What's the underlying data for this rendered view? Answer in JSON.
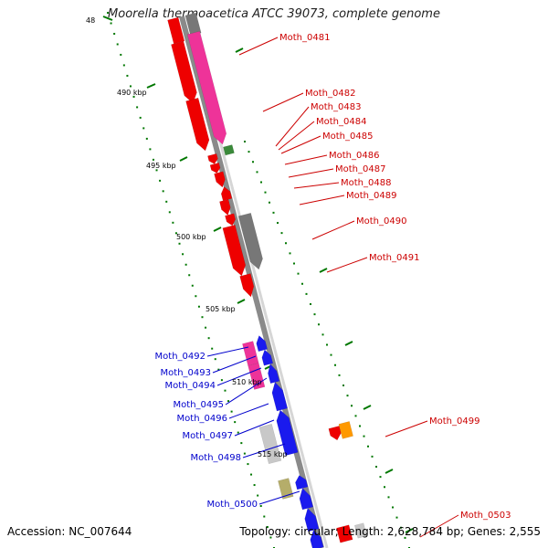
{
  "title": "Moorella thermoacetica ATCC 39073, complete genome",
  "footer": {
    "accession": "Accession: NC_007644",
    "summary": "Topology: circular; Length: 2,628,784 bp; Genes: 2,555"
  },
  "colors": {
    "forward_label": "#cc0000",
    "reverse_label": "#0000cc",
    "backbone": "#8a8a8a",
    "tick_marks": "#007700",
    "red_gene": "#ee0000",
    "pink_gene": "#ee3399",
    "gray_gene": "#777777",
    "green_gene": "#3a8a3a",
    "blue_gene": "#1a1aee",
    "light_gray_gene": "#c8c8c8",
    "olive_gene": "#b5ad6a",
    "orange_gene": "#ff9900"
  },
  "ticks": [
    {
      "label": "48"
    },
    {
      "label": "490 kbp"
    },
    {
      "label": "495 kbp"
    },
    {
      "label": "500 kbp"
    },
    {
      "label": "505 kbp"
    },
    {
      "label": "510 kbp"
    },
    {
      "label": "515 kbp"
    }
  ],
  "gene_labels": {
    "forward": [
      "Moth_0481",
      "Moth_0482",
      "Moth_0483",
      "Moth_0484",
      "Moth_0485",
      "Moth_0486",
      "Moth_0487",
      "Moth_0488",
      "Moth_0489",
      "Moth_0490",
      "Moth_0491",
      "Moth_0499",
      "Moth_0503"
    ],
    "reverse": [
      "Moth_0492",
      "Moth_0493",
      "Moth_0494",
      "Moth_0495",
      "Moth_0496",
      "Moth_0497",
      "Moth_0498",
      "Moth_0500"
    ]
  }
}
